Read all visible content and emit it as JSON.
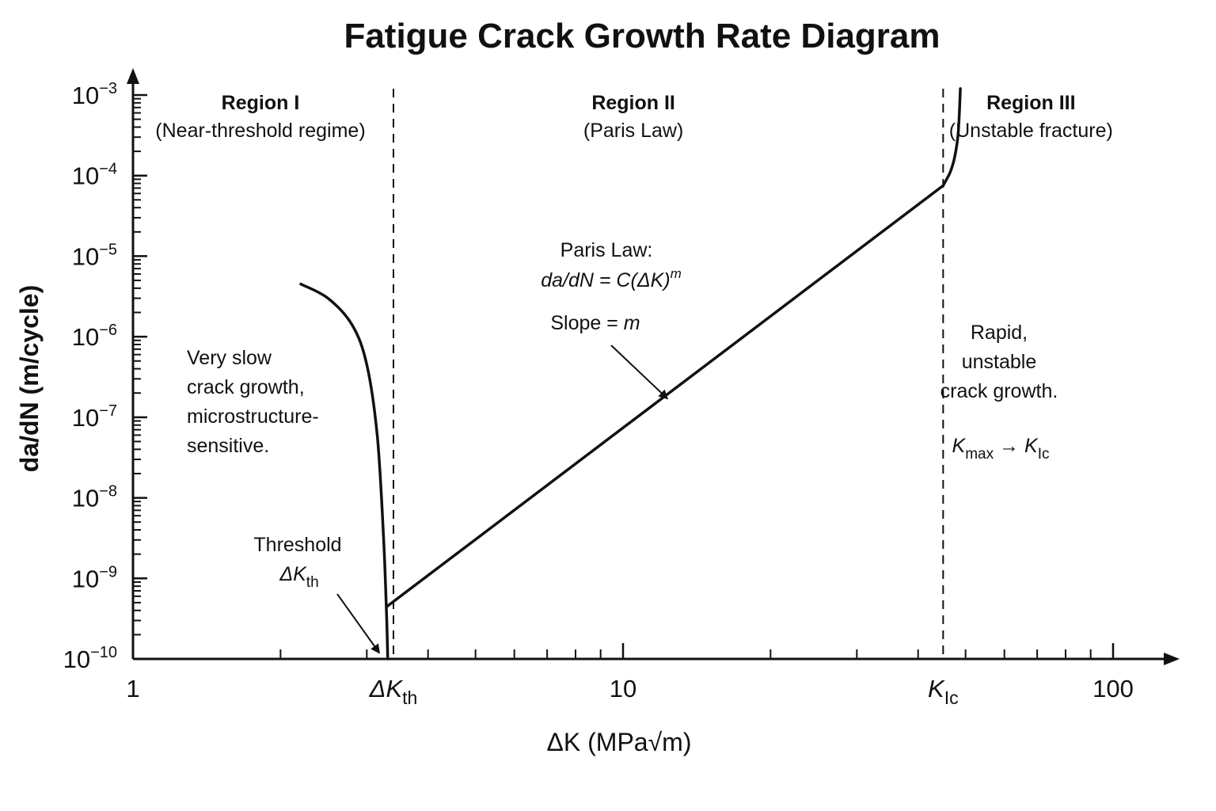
{
  "chart_data": {
    "type": "line",
    "title": "Fatigue Crack Growth Rate Diagram",
    "xlabel": "ΔK (MPa√m)",
    "ylabel": "da/dN (m/cycle)",
    "x_scale": "log",
    "y_scale": "log",
    "xlim": [
      1,
      100
    ],
    "ylim": [
      1e-10,
      0.001
    ],
    "x_ticks": [
      {
        "value": 1,
        "label": "1"
      },
      {
        "value": 10,
        "label": "10"
      },
      {
        "value": 100,
        "label": "100"
      }
    ],
    "x_special_ticks": {
      "threshold": {
        "value": 3.4,
        "base": "ΔK",
        "sub": "th"
      },
      "toughness": {
        "value": 45,
        "base": "K",
        "sub": "Ic"
      }
    },
    "y_ticks": [
      {
        "value": 0.001,
        "base": "10",
        "exp": "−3"
      },
      {
        "value": 0.0001,
        "base": "10",
        "exp": "−4"
      },
      {
        "value": 1e-05,
        "base": "10",
        "exp": "−5"
      },
      {
        "value": 1e-06,
        "base": "10",
        "exp": "−6"
      },
      {
        "value": 1e-07,
        "base": "10",
        "exp": "−7"
      },
      {
        "value": 1e-08,
        "base": "10",
        "exp": "−8"
      },
      {
        "value": 1e-09,
        "base": "10",
        "exp": "−9"
      },
      {
        "value": 1e-10,
        "base": "10",
        "exp": "−10"
      }
    ],
    "grid": false,
    "region_boundaries": [
      3.4,
      45
    ],
    "regions": [
      {
        "name": "Region I",
        "subtitle": "(Near-threshold regime)",
        "x_center": 1.82,
        "note": [
          "Very slow",
          "crack growth,",
          "microstructure-",
          "sensitive."
        ]
      },
      {
        "name": "Region II",
        "subtitle": "(Paris Law)",
        "x_center": 10.5,
        "note": []
      },
      {
        "name": "Region III",
        "subtitle": "(Unstable fracture)",
        "x_center": 68,
        "note": [
          "Rapid,",
          "unstable",
          "crack growth."
        ]
      }
    ],
    "series": [
      {
        "segment": "region-1",
        "x": [
          2.2,
          2.5,
          2.8,
          3.0,
          3.15,
          3.24,
          3.29,
          3.31
        ],
        "y": [
          4.5e-06,
          3e-06,
          1.4e-06,
          4.5e-07,
          6e-08,
          4e-09,
          4e-10,
          1e-10
        ]
      },
      {
        "segment": "region-2",
        "x": [
          3.3,
          45
        ],
        "y": [
          4.5e-10,
          7.5e-05
        ]
      },
      {
        "segment": "region-3",
        "x": [
          45,
          46.5,
          47.5,
          48.3,
          48.8
        ],
        "y": [
          7.5e-05,
          0.00011,
          0.00017,
          0.00034,
          0.0012
        ]
      }
    ],
    "annotations": {
      "paris": {
        "line1": "Paris Law:",
        "formula": "da/dN = C(ΔK)",
        "formula_exp": "m",
        "slope_prefix": "Slope = ",
        "slope_var": "m",
        "arrow_to": {
          "x": 12.3,
          "y": 1.5e-07
        }
      },
      "threshold": {
        "line1": "Threshold",
        "base": "ΔK",
        "sub": "th",
        "arrow_to": {
          "x": 3.25,
          "y": 1e-10
        }
      },
      "kmax": {
        "base1": "K",
        "sub1": "max",
        "arrow": " → ",
        "base2": "K",
        "sub2": "Ic"
      }
    }
  }
}
